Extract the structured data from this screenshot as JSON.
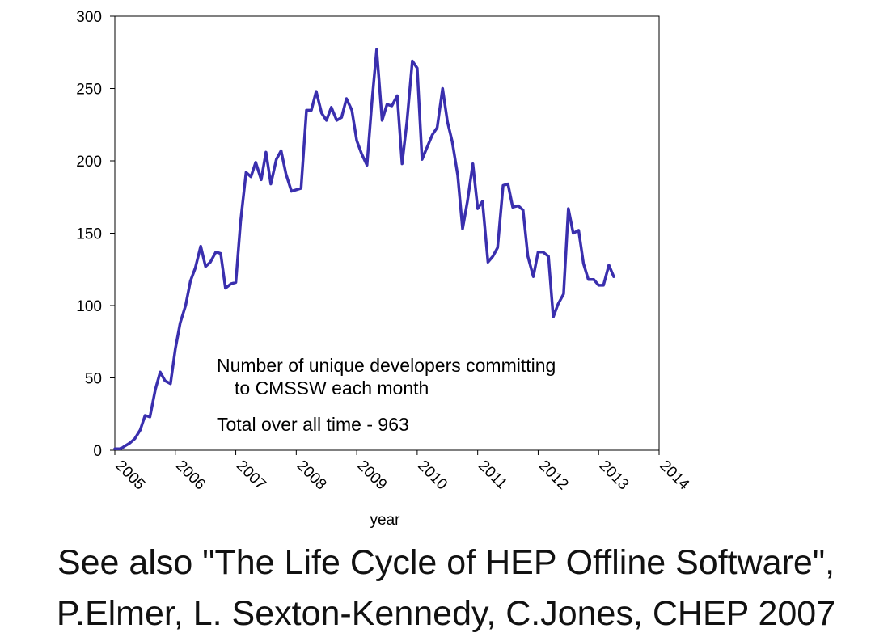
{
  "chart_data": {
    "type": "line",
    "xlabel": "year",
    "ylabel": "",
    "xlim": [
      2005,
      2014
    ],
    "ylim": [
      0,
      300
    ],
    "x_ticks": [
      "2005",
      "2006",
      "2007",
      "2008",
      "2009",
      "2010",
      "2011",
      "2012",
      "2013",
      "2014"
    ],
    "y_ticks": [
      "0",
      "50",
      "100",
      "150",
      "200",
      "250",
      "300"
    ],
    "grid": false,
    "line_color": "#3a2fae",
    "series": [
      {
        "x": [
          2005.0,
          2005.1,
          2005.17,
          2005.25,
          2005.33,
          2005.42,
          2005.5,
          2005.58,
          2005.67,
          2005.75,
          2005.83,
          2005.92,
          2006.0,
          2006.08,
          2006.17,
          2006.25,
          2006.33,
          2006.42,
          2006.5,
          2006.58,
          2006.67,
          2006.75,
          2006.83,
          2006.92,
          2007.0,
          2007.08,
          2007.17,
          2007.25,
          2007.33,
          2007.42,
          2007.5,
          2007.58,
          2007.67,
          2007.75,
          2007.83,
          2007.92,
          2008.0,
          2008.08,
          2008.17,
          2008.25,
          2008.33,
          2008.42,
          2008.5,
          2008.58,
          2008.67,
          2008.75,
          2008.83,
          2008.92,
          2009.0,
          2009.08,
          2009.17,
          2009.25,
          2009.33,
          2009.42,
          2009.5,
          2009.58,
          2009.67,
          2009.75,
          2009.83,
          2009.92,
          2010.0,
          2010.08,
          2010.17,
          2010.25,
          2010.33,
          2010.42,
          2010.5,
          2010.58,
          2010.67,
          2010.75,
          2010.83,
          2010.92,
          2011.0,
          2011.08,
          2011.17,
          2011.25,
          2011.33,
          2011.42,
          2011.5,
          2011.58,
          2011.67,
          2011.75,
          2011.83,
          2011.92,
          2012.0,
          2012.08,
          2012.17,
          2012.25,
          2012.33,
          2012.42,
          2012.5,
          2012.58,
          2012.67,
          2012.75,
          2012.83,
          2012.92,
          2013.0,
          2013.08,
          2013.17,
          2013.25
        ],
        "values": [
          1,
          1,
          3,
          5,
          8,
          14,
          24,
          23,
          42,
          54,
          48,
          46,
          70,
          88,
          100,
          117,
          126,
          141,
          127,
          130,
          137,
          136,
          112,
          115,
          116,
          158,
          192,
          189,
          199,
          187,
          206,
          184,
          201,
          207,
          191,
          179,
          180,
          181,
          235,
          235,
          248,
          233,
          228,
          237,
          228,
          230,
          243,
          235,
          214,
          205,
          197,
          240,
          277,
          228,
          239,
          238,
          245,
          198,
          227,
          269,
          264,
          201,
          210,
          218,
          223,
          250,
          227,
          213,
          190,
          153,
          172,
          198,
          167,
          172,
          130,
          134,
          140,
          183,
          184,
          168,
          169,
          166,
          134,
          120,
          137,
          137,
          134,
          92,
          101,
          108,
          167,
          150,
          152,
          129,
          118,
          118,
          114,
          114,
          128,
          120
        ]
      }
    ],
    "annotations": {
      "line1": "Number of unique developers committing",
      "line2": "to CMSSW each month",
      "line3": "Total over all time - 963"
    }
  },
  "caption": {
    "line1": "See also \"The Life Cycle of HEP Offline Software\",",
    "line2": "P.Elmer, L. Sexton-Kennedy, C.Jones, CHEP 2007"
  }
}
